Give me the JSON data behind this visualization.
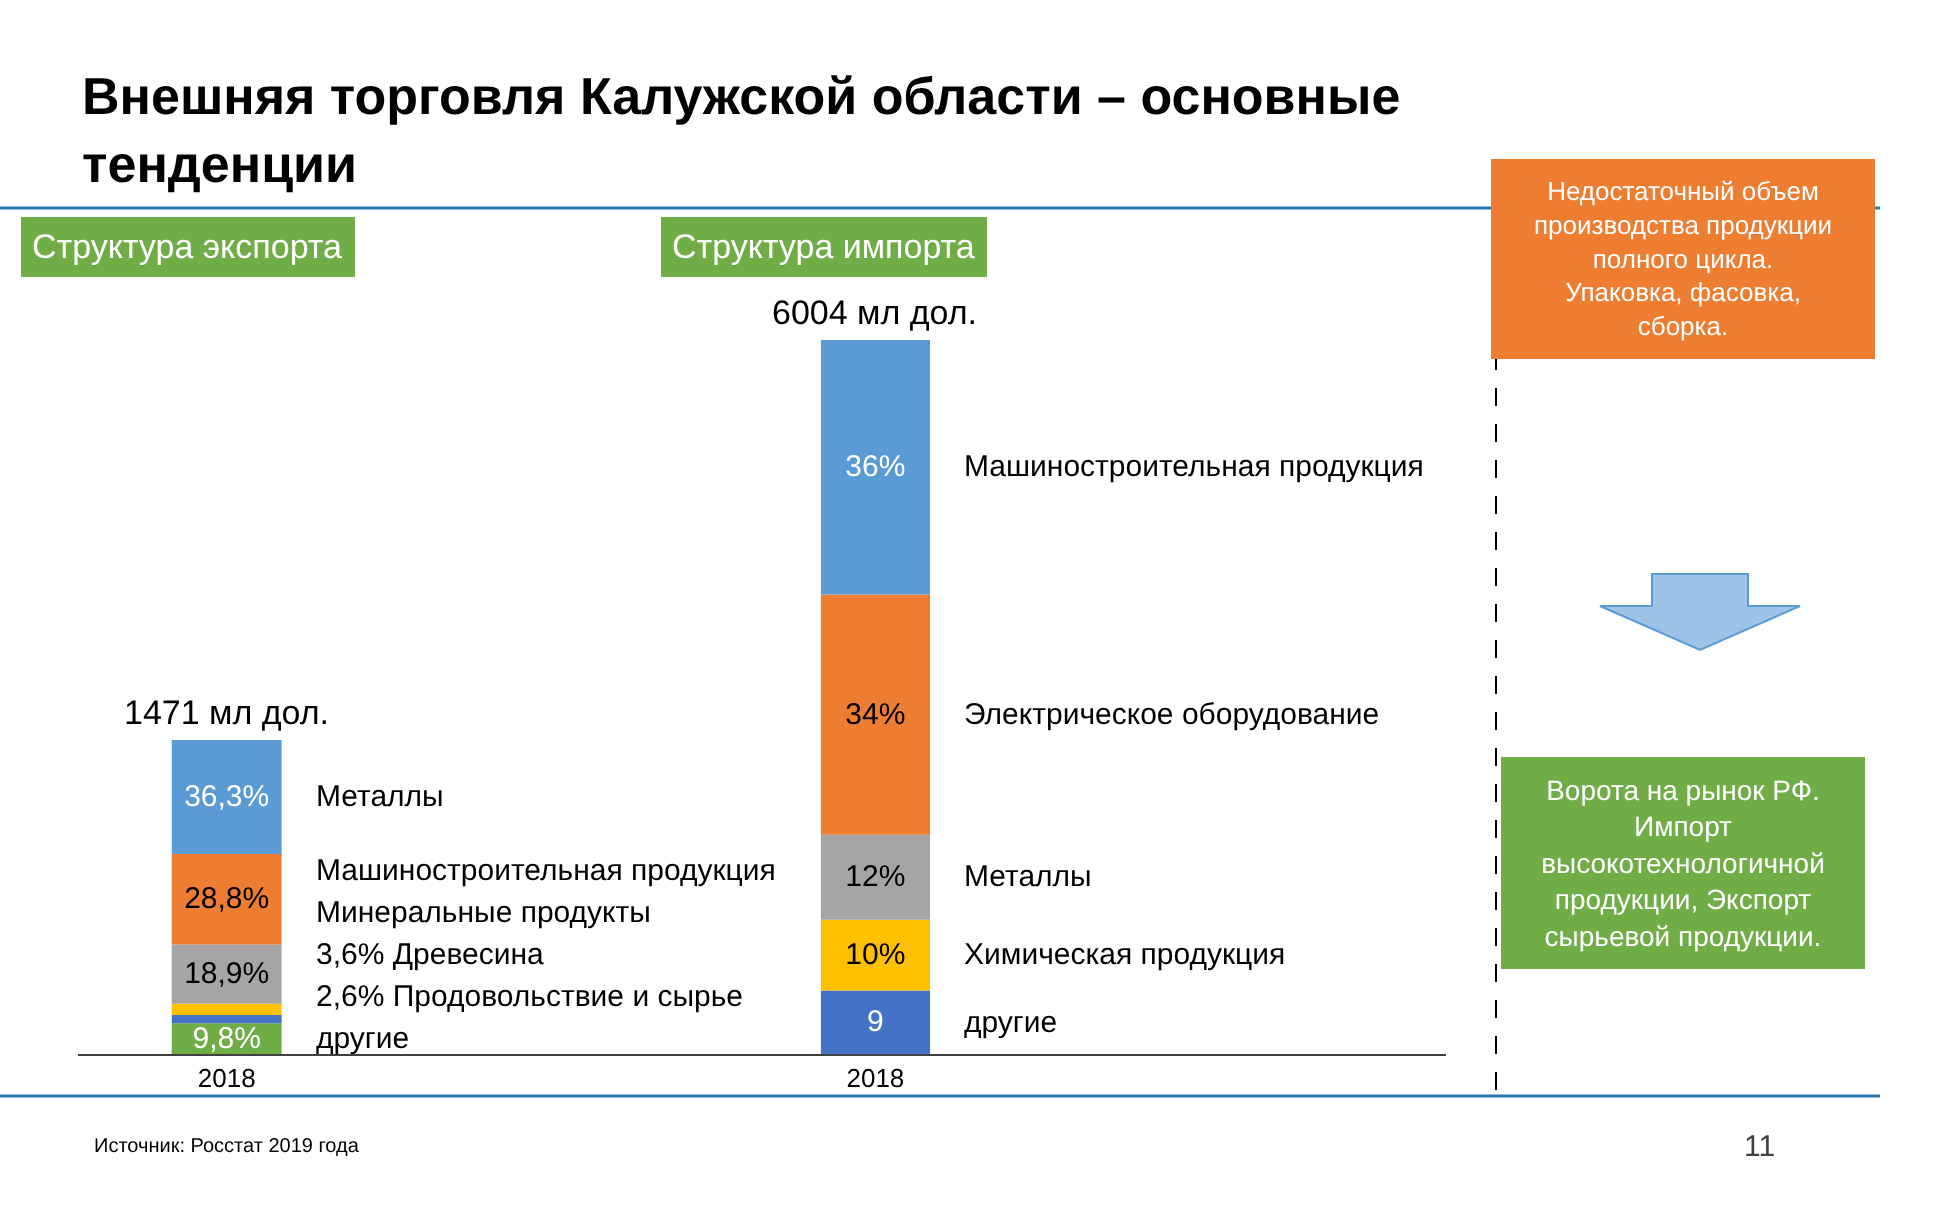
{
  "chart_data": [
    {
      "type": "bar",
      "stacked": true,
      "title": "Внешняя торговля Калужской области – основные тенденции",
      "subtitle": "Структура экспорта",
      "categories": [
        "2018"
      ],
      "series": [
        {
          "name": "другие",
          "color": "#70ad47",
          "values": [
            9.8
          ],
          "value_labels": [
            "9,8%"
          ]
        },
        {
          "name": "2,6% Продовольствие и сырье",
          "color": "#4472c4",
          "values": [
            2.6
          ],
          "value_labels": [
            null
          ]
        },
        {
          "name": "3,6% Древесина",
          "color": "#ffc000",
          "values": [
            3.6
          ],
          "value_labels": [
            null
          ]
        },
        {
          "name": "Минеральные продукты",
          "color": "#a5a5a5",
          "values": [
            18.9
          ],
          "value_labels": [
            "18,9%"
          ]
        },
        {
          "name": "Машиностроительная продукция",
          "color": "#ed7d31",
          "values": [
            28.8
          ],
          "value_labels": [
            "28,8%"
          ]
        },
        {
          "name": "Металлы",
          "color": "#5b9bd5",
          "values": [
            36.3
          ],
          "value_labels": [
            "36,3%"
          ]
        }
      ],
      "annotations": [
        {
          "text": "1471 мл дол.",
          "x": "2018",
          "y": 100
        },
        "Источник: Росстат 2019 года",
        "11"
      ]
    },
    {
      "type": "bar",
      "stacked": true,
      "title": "Структура импорта",
      "categories": [
        "2018"
      ],
      "annotations": [
        {
          "text": "6004 мл дол.",
          "x": "2018",
          "y": 101
        }
      ],
      "series": [
        {
          "name": "другие",
          "color": "#4472c4",
          "values": [
            9
          ],
          "value_labels": [
            "9"
          ]
        },
        {
          "name": "Химическая продукция",
          "color": "#ffc000",
          "values": [
            10
          ],
          "value_labels": [
            "10%"
          ]
        },
        {
          "name": "Металлы",
          "color": "#a5a5a5",
          "values": [
            12
          ],
          "value_labels": [
            "12%"
          ]
        },
        {
          "name": "Электрическое оборудование",
          "color": "#ed7d31",
          "values": [
            34
          ],
          "value_labels": [
            "34%"
          ]
        },
        {
          "name": "Машиностроительная продукция",
          "color": "#5b9bd5",
          "values": [
            36
          ],
          "value_labels": [
            "36%"
          ]
        }
      ]
    },
    {
      "type": "other",
      "annotations": [
        "Недостаточный объем\nпроизводства продукции\nполного цикла.\nУпаковка, фасовка,\nсборка.",
        "Ворота на рынок РФ.\nИмпорт\nвысокотехнологичной\nпродукции, Экспорт\nсырьевой продукции."
      ]
    }
  ]
}
